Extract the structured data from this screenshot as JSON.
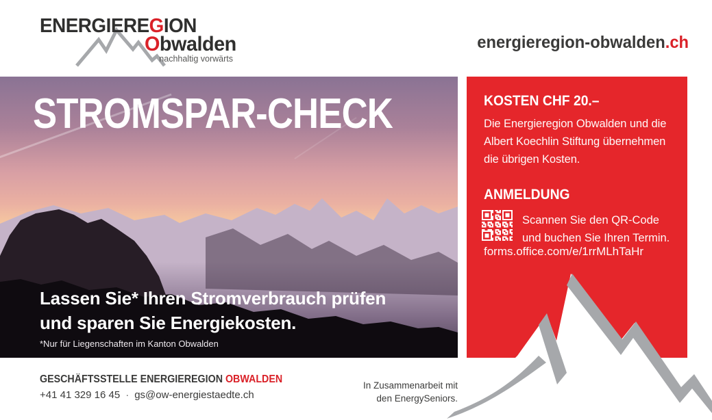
{
  "brand": {
    "logo_line1_pre": "ENERGIERE",
    "logo_line1_accent": "G",
    "logo_line1_post": "ION",
    "logo_line2_accent": "O",
    "logo_line2_post": "bwalden",
    "logo_tagline": "nachhaltig vorwärts",
    "website_name": "energieregion-obwalden",
    "website_tld": ".ch"
  },
  "hero": {
    "title": "STROMSPAR-CHECK",
    "subtitle_lines": [
      "Lassen Sie* Ihren Stromverbrauch prüfen",
      "und sparen Sie Energiekosten."
    ],
    "footnote": "*Nur für Liegenschaften im Kanton Obwalden"
  },
  "info_panel": {
    "cost_heading": "KOSTEN CHF 20.–",
    "cost_lines": [
      "Die Energieregion Obwalden und die",
      "Albert Koechlin Stiftung übernehmen",
      "die übrigen Kosten."
    ],
    "registration_heading": "ANMELDUNG",
    "qr_lines": [
      "Scannen Sie den QR-Code",
      "und buchen Sie Ihren Termin."
    ],
    "registration_url": "forms.office.com/e/1rrMLhTaHr"
  },
  "footer": {
    "office_label": "GESCHÄFTSSTELLE ENERGIEREGION ",
    "office_accent": "OBWALDEN",
    "phone": "+41 41 329 16 45",
    "separator": "·",
    "email": "gs@ow-energiestaedte.ch",
    "partnership_lines": [
      "In Zusammenarbeit mit",
      "den EnergySeniors."
    ]
  },
  "colors": {
    "accent_red": "#da2128",
    "panel_red": "#e5262b",
    "dark_text": "#3a3a39",
    "mountain_gray": "#a6a8ab",
    "tagline_gray": "#575756"
  }
}
